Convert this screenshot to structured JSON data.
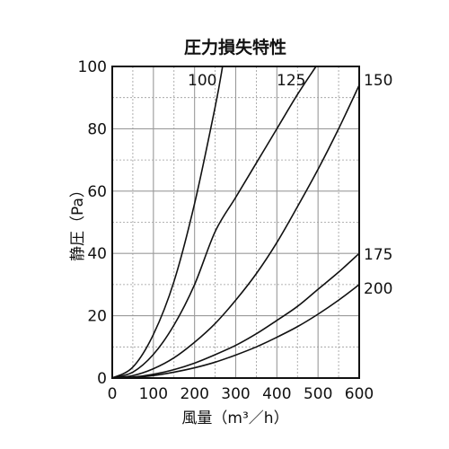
{
  "chart_data": {
    "type": "line",
    "title": "圧力損失特性",
    "xlabel": "風量（m³／h）",
    "ylabel": "静圧（Pa）",
    "xlim": [
      0,
      600
    ],
    "ylim": [
      0,
      100
    ],
    "x_ticks": [
      "0",
      "100",
      "200",
      "300",
      "400",
      "500",
      "600"
    ],
    "y_ticks": [
      "0",
      "20",
      "40",
      "60",
      "80",
      "100"
    ],
    "grid": true,
    "grid_minor_step": [
      50,
      10
    ],
    "colors": {
      "line": "#111111",
      "grid": "#9a9a9a",
      "frame": "#111111"
    },
    "series": [
      {
        "name": "100",
        "x": [
          0,
          50,
          100,
          150,
          200,
          250,
          268
        ],
        "y": [
          0,
          3.5,
          14,
          31,
          56,
          87,
          100
        ]
      },
      {
        "name": "125",
        "x": [
          0,
          50,
          100,
          150,
          200,
          250,
          300,
          350,
          400,
          450,
          495
        ],
        "y": [
          0,
          1.9,
          7.6,
          17,
          30,
          47,
          58,
          69,
          80,
          91,
          100
        ]
      },
      {
        "name": "150",
        "x": [
          0,
          50,
          100,
          150,
          200,
          250,
          300,
          350,
          400,
          450,
          500,
          550,
          600
        ],
        "y": [
          0,
          0.8,
          3,
          6.5,
          11.5,
          17.5,
          25,
          33.5,
          43.5,
          55,
          67,
          80,
          94
        ]
      },
      {
        "name": "175",
        "x": [
          0,
          50,
          100,
          150,
          200,
          250,
          300,
          350,
          400,
          450,
          500,
          550,
          600
        ],
        "y": [
          0,
          0.3,
          1.2,
          2.7,
          4.8,
          7.5,
          10.5,
          14.2,
          18.5,
          23,
          28.5,
          34,
          40
        ]
      },
      {
        "name": "200",
        "x": [
          0,
          50,
          100,
          150,
          200,
          250,
          300,
          350,
          400,
          450,
          500,
          550,
          600
        ],
        "y": [
          0,
          0.2,
          0.8,
          1.9,
          3.3,
          5.1,
          7.4,
          10,
          13.1,
          16.5,
          20.5,
          25,
          30
        ]
      }
    ]
  }
}
